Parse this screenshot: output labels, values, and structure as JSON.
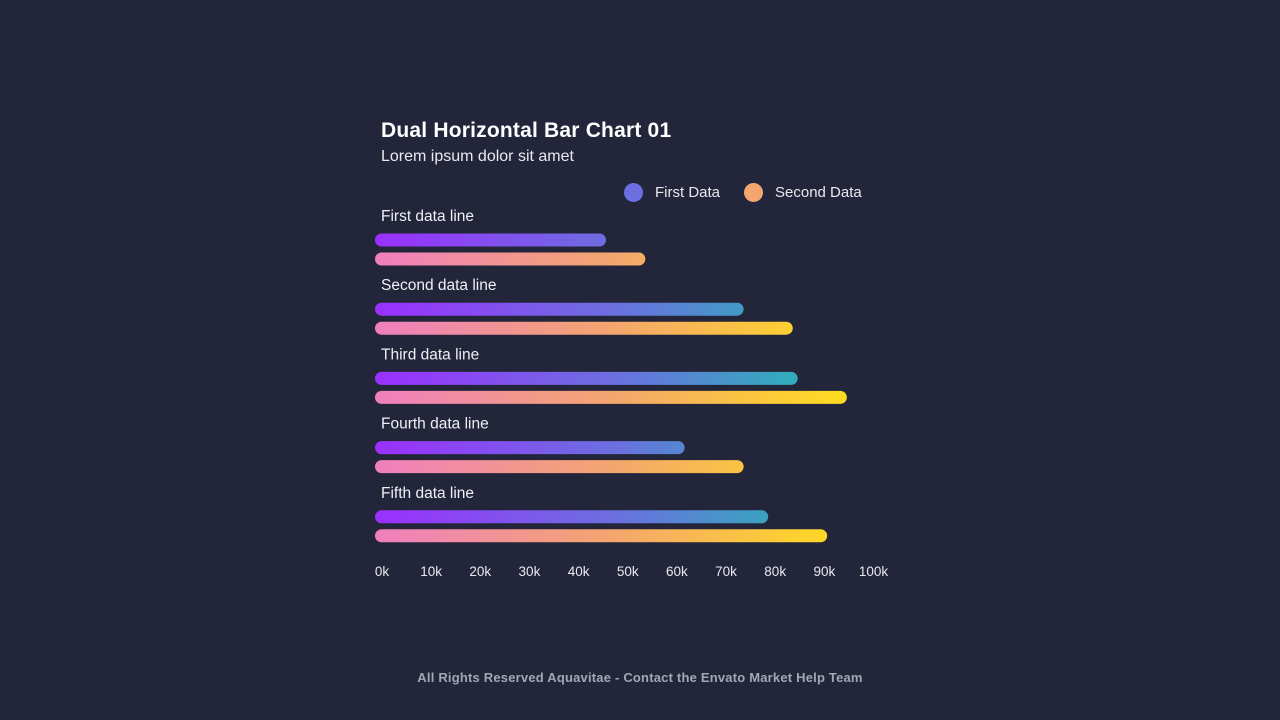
{
  "chart_data": {
    "type": "bar",
    "orientation": "horizontal",
    "title": "Dual Horizontal Bar Chart 01",
    "subtitle": "Lorem ipsum dolor sit amet",
    "categories": [
      "First data line",
      "Second data line",
      "Third data line",
      "Fourth data line",
      "Fifth data line"
    ],
    "series": [
      {
        "name": "First Data",
        "values": [
          47,
          75,
          86,
          63,
          80
        ],
        "color": "#6c6fe0",
        "gradient": [
          "#9b30ff",
          "#6c6fe0",
          "#1fbfb0"
        ]
      },
      {
        "name": "Second Data",
        "values": [
          55,
          85,
          96,
          75,
          92
        ],
        "color": "#f4a66e",
        "gradient": [
          "#ef7fbf",
          "#f4a66e",
          "#ffdd1e"
        ]
      }
    ],
    "xlim": [
      0,
      100
    ],
    "xticks": [
      "0k",
      "10k",
      "20k",
      "30k",
      "40k",
      "50k",
      "60k",
      "70k",
      "80k",
      "90k",
      "100k"
    ],
    "xlabel": "",
    "ylabel": "",
    "legend_position": "top-right",
    "grid": false
  },
  "footer": "All Rights Reserved Aquavitae - Contact the Envato Market Help Team",
  "colors": {
    "background": "#23263a",
    "text": "#ffffff",
    "muted": "#a3a6b4"
  }
}
